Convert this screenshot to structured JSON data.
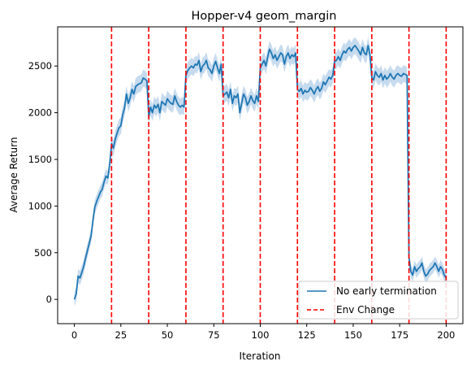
{
  "chart_data": {
    "type": "line",
    "title": "Hopper-v4 geom_margin",
    "xlabel": "Iteration",
    "ylabel": "Average Return",
    "xlim": [
      -9,
      209
    ],
    "ylim": [
      -260,
      2920
    ],
    "xticks": [
      0,
      25,
      50,
      75,
      100,
      125,
      150,
      175,
      200
    ],
    "yticks": [
      0,
      500,
      1000,
      1500,
      2000,
      2500
    ],
    "grid": false,
    "legend_position": "lower right",
    "series": [
      {
        "name": "No early termination",
        "style": "solid line with shaded band",
        "color": "#1f77b4",
        "band_color": "#c7dbee",
        "points": [
          [
            0,
            0
          ],
          [
            1,
            60
          ],
          [
            2,
            250
          ],
          [
            3,
            230
          ],
          [
            4,
            290
          ],
          [
            5,
            350
          ],
          [
            6,
            440
          ],
          [
            7,
            520
          ],
          [
            8,
            600
          ],
          [
            9,
            680
          ],
          [
            10,
            850
          ],
          [
            11,
            990
          ],
          [
            12,
            1050
          ],
          [
            13,
            1100
          ],
          [
            14,
            1150
          ],
          [
            15,
            1180
          ],
          [
            16,
            1260
          ],
          [
            17,
            1320
          ],
          [
            18,
            1300
          ],
          [
            19,
            1450
          ],
          [
            20,
            1670
          ],
          [
            21,
            1620
          ],
          [
            22,
            1720
          ],
          [
            23,
            1780
          ],
          [
            24,
            1840
          ],
          [
            25,
            1860
          ],
          [
            26,
            1980
          ],
          [
            27,
            2050
          ],
          [
            28,
            2200
          ],
          [
            29,
            2100
          ],
          [
            30,
            2160
          ],
          [
            31,
            2250
          ],
          [
            32,
            2200
          ],
          [
            33,
            2280
          ],
          [
            34,
            2300
          ],
          [
            35,
            2310
          ],
          [
            36,
            2320
          ],
          [
            37,
            2370
          ],
          [
            38,
            2360
          ],
          [
            39,
            2340
          ],
          [
            40,
            1960
          ],
          [
            41,
            2060
          ],
          [
            42,
            2000
          ],
          [
            43,
            2080
          ],
          [
            44,
            2050
          ],
          [
            45,
            2090
          ],
          [
            46,
            2000
          ],
          [
            47,
            2120
          ],
          [
            48,
            2100
          ],
          [
            49,
            2080
          ],
          [
            50,
            2150
          ],
          [
            51,
            2120
          ],
          [
            52,
            2100
          ],
          [
            53,
            2090
          ],
          [
            54,
            2180
          ],
          [
            55,
            2120
          ],
          [
            56,
            2080
          ],
          [
            57,
            2060
          ],
          [
            58,
            2080
          ],
          [
            59,
            2060
          ],
          [
            60,
            2400
          ],
          [
            61,
            2450
          ],
          [
            62,
            2480
          ],
          [
            63,
            2500
          ],
          [
            64,
            2480
          ],
          [
            65,
            2520
          ],
          [
            66,
            2510
          ],
          [
            67,
            2560
          ],
          [
            68,
            2440
          ],
          [
            69,
            2500
          ],
          [
            70,
            2520
          ],
          [
            71,
            2560
          ],
          [
            72,
            2480
          ],
          [
            73,
            2460
          ],
          [
            74,
            2420
          ],
          [
            75,
            2500
          ],
          [
            76,
            2550
          ],
          [
            77,
            2480
          ],
          [
            78,
            2420
          ],
          [
            79,
            2520
          ],
          [
            80,
            2180
          ],
          [
            81,
            2200
          ],
          [
            82,
            2220
          ],
          [
            83,
            2160
          ],
          [
            84,
            2250
          ],
          [
            85,
            2100
          ],
          [
            86,
            2180
          ],
          [
            87,
            2160
          ],
          [
            88,
            2200
          ],
          [
            89,
            2000
          ],
          [
            90,
            2100
          ],
          [
            91,
            2200
          ],
          [
            92,
            2160
          ],
          [
            93,
            2080
          ],
          [
            94,
            2120
          ],
          [
            95,
            2180
          ],
          [
            96,
            2130
          ],
          [
            97,
            2100
          ],
          [
            98,
            2180
          ],
          [
            99,
            2120
          ],
          [
            100,
            2480
          ],
          [
            101,
            2520
          ],
          [
            102,
            2560
          ],
          [
            103,
            2500
          ],
          [
            104,
            2600
          ],
          [
            105,
            2680
          ],
          [
            106,
            2640
          ],
          [
            107,
            2580
          ],
          [
            108,
            2620
          ],
          [
            109,
            2560
          ],
          [
            110,
            2600
          ],
          [
            111,
            2640
          ],
          [
            112,
            2620
          ],
          [
            113,
            2520
          ],
          [
            114,
            2600
          ],
          [
            115,
            2640
          ],
          [
            116,
            2580
          ],
          [
            117,
            2620
          ],
          [
            118,
            2600
          ],
          [
            119,
            2640
          ],
          [
            120,
            2250
          ],
          [
            121,
            2230
          ],
          [
            122,
            2260
          ],
          [
            123,
            2200
          ],
          [
            124,
            2240
          ],
          [
            125,
            2220
          ],
          [
            126,
            2230
          ],
          [
            127,
            2270
          ],
          [
            128,
            2240
          ],
          [
            129,
            2200
          ],
          [
            130,
            2250
          ],
          [
            131,
            2280
          ],
          [
            132,
            2230
          ],
          [
            133,
            2260
          ],
          [
            134,
            2330
          ],
          [
            135,
            2300
          ],
          [
            136,
            2340
          ],
          [
            137,
            2380
          ],
          [
            138,
            2360
          ],
          [
            139,
            2400
          ],
          [
            140,
            2550
          ],
          [
            141,
            2560
          ],
          [
            142,
            2600
          ],
          [
            143,
            2560
          ],
          [
            144,
            2620
          ],
          [
            145,
            2660
          ],
          [
            146,
            2640
          ],
          [
            147,
            2680
          ],
          [
            148,
            2700
          ],
          [
            149,
            2660
          ],
          [
            150,
            2700
          ],
          [
            151,
            2720
          ],
          [
            152,
            2690
          ],
          [
            153,
            2660
          ],
          [
            154,
            2620
          ],
          [
            155,
            2700
          ],
          [
            156,
            2640
          ],
          [
            157,
            2620
          ],
          [
            158,
            2720
          ],
          [
            159,
            2620
          ],
          [
            160,
            2380
          ],
          [
            161,
            2350
          ],
          [
            162,
            2440
          ],
          [
            163,
            2400
          ],
          [
            164,
            2380
          ],
          [
            165,
            2420
          ],
          [
            166,
            2350
          ],
          [
            167,
            2400
          ],
          [
            168,
            2360
          ],
          [
            169,
            2380
          ],
          [
            170,
            2420
          ],
          [
            171,
            2380
          ],
          [
            172,
            2360
          ],
          [
            173,
            2400
          ],
          [
            174,
            2420
          ],
          [
            175,
            2400
          ],
          [
            176,
            2390
          ],
          [
            177,
            2420
          ],
          [
            178,
            2410
          ],
          [
            179,
            2400
          ],
          [
            180,
            450
          ],
          [
            181,
            300
          ],
          [
            182,
            260
          ],
          [
            183,
            350
          ],
          [
            184,
            300
          ],
          [
            185,
            330
          ],
          [
            186,
            350
          ],
          [
            187,
            390
          ],
          [
            188,
            300
          ],
          [
            189,
            250
          ],
          [
            190,
            270
          ],
          [
            191,
            310
          ],
          [
            192,
            330
          ],
          [
            193,
            350
          ],
          [
            194,
            390
          ],
          [
            195,
            350
          ],
          [
            196,
            300
          ],
          [
            197,
            350
          ],
          [
            198,
            320
          ],
          [
            199,
            260
          ],
          [
            200,
            230
          ]
        ]
      },
      {
        "name": "Env Change",
        "style": "dashed vertical line",
        "color": "#ff0000",
        "x": [
          20,
          40,
          60,
          80,
          100,
          120,
          140,
          160,
          180,
          200
        ]
      }
    ]
  }
}
